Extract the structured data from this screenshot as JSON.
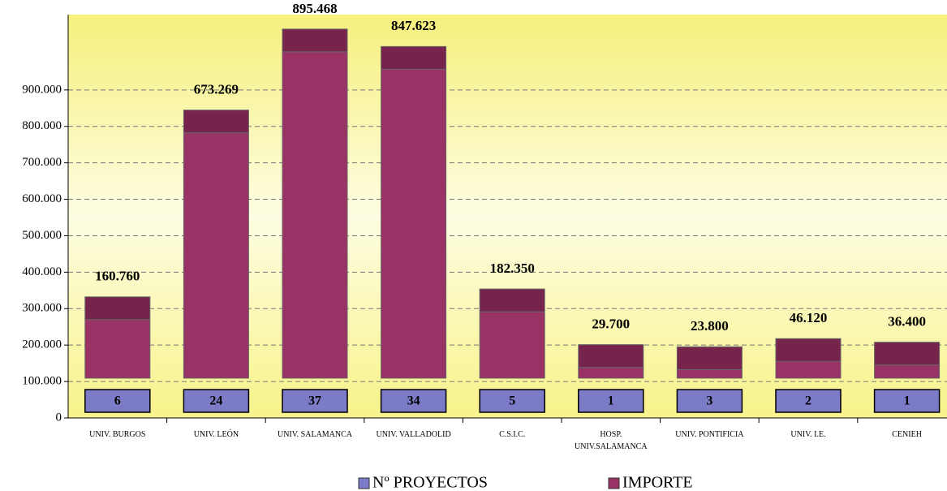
{
  "chart_data": {
    "type": "bar",
    "categories": [
      "UNIV. BURGOS",
      "UNIV. LEÓN",
      "UNIV. SALAMANCA",
      "UNIV. VALLADOLID",
      "C.S.I.C.",
      "HOSP. UNIV.SALAMANCA",
      "UNIV. PONTIFICIA",
      "UNIV. I.E.",
      "CENIEH"
    ],
    "series": [
      {
        "name": "Nº PROYECTOS",
        "color": "#7b7bc8",
        "values": [
          6,
          24,
          37,
          34,
          5,
          1,
          3,
          2,
          1
        ]
      },
      {
        "name": "IMPORTE",
        "color": "#993366",
        "values": [
          160760,
          673269,
          895468,
          847623,
          182350,
          29700,
          23800,
          46120,
          36400
        ],
        "value_labels": [
          "160.760",
          "673.269",
          "895.468",
          "847.623",
          "182.350",
          "29.700",
          "23.800",
          "46.120",
          "36.400"
        ]
      }
    ],
    "ylim": [
      0,
      1100000
    ],
    "yticks": [
      0,
      {
        "value": 100000,
        "label": "100.000"
      },
      {
        "value": 200000,
        "label": "200.000"
      },
      {
        "value": 300000,
        "label": "300.000"
      },
      {
        "value": 400000,
        "label": "400.000"
      },
      {
        "value": 500000,
        "label": "500.000"
      },
      {
        "value": 600000,
        "label": "600.000"
      },
      {
        "value": 700000,
        "label": "700.000"
      },
      {
        "value": 800000,
        "label": "800.000"
      },
      {
        "value": 900000,
        "label": "900.000"
      }
    ],
    "grid": true
  }
}
